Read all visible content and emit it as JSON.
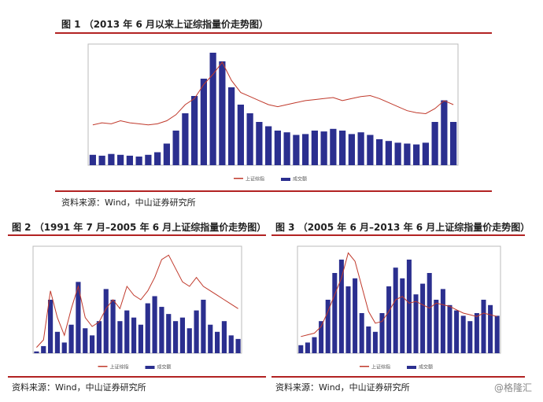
{
  "figures": [
    {
      "caption": "图 1 （2013 年 6 月以来上证综指量价走势图）",
      "source": "资料来源：Wind，中山证券研究所",
      "chart": {
        "type": "bar-line",
        "ylim": [
          0,
          6000
        ],
        "y2lim": [
          0,
          14000
        ],
        "series": [
          {
            "name": "上证综指",
            "color": "#c0392b",
            "axis": "y",
            "values": [
              2000,
              2100,
              2050,
              2200,
              2100,
              2050,
              2000,
              2050,
              2200,
              2500,
              3000,
              3300,
              4000,
              4500,
              5100,
              4200,
              3600,
              3400,
              3200,
              3000,
              2900,
              3000,
              3100,
              3200,
              3250,
              3300,
              3350,
              3200,
              3300,
              3400,
              3450,
              3300,
              3100,
              2900,
              2700,
              2600,
              2550,
              2800,
              3200,
              3000
            ]
          },
          {
            "name": "成交额",
            "color": "#2b2f8f",
            "axis": "y2",
            "values": [
              1200,
              1100,
              1300,
              1200,
              1100,
              1000,
              1200,
              1500,
              2500,
              4000,
              6000,
              8000,
              10000,
              13000,
              12000,
              9000,
              7000,
              6000,
              5000,
              4500,
              4000,
              3800,
              3500,
              3600,
              4000,
              3900,
              4200,
              4000,
              3600,
              3800,
              3500,
              3000,
              2800,
              2600,
              2500,
              2400,
              2600,
              5000,
              7500,
              5000
            ]
          }
        ]
      }
    },
    {
      "caption": "图 2 （1991 年 7 月–2005 年 6 月上证综指量价走势图）",
      "source": "资料来源：Wind，中山证券研究所",
      "chart": {
        "type": "bar-line",
        "ylim": [
          0,
          2400
        ],
        "y2lim": [
          0,
          3000
        ],
        "series": [
          {
            "name": "上证综指",
            "color": "#c0392b",
            "axis": "y",
            "values": [
              130,
              300,
              1400,
              800,
              400,
              1000,
              1500,
              800,
              600,
              700,
              1000,
              1200,
              1000,
              1500,
              1300,
              1200,
              1400,
              1700,
              2100,
              2200,
              1900,
              1600,
              1500,
              1700,
              1500,
              1400,
              1300,
              1200,
              1100,
              1000
            ]
          },
          {
            "name": "成交额",
            "color": "#2b2f8f",
            "axis": "y2",
            "values": [
              50,
              200,
              1500,
              600,
              300,
              800,
              2000,
              700,
              500,
              900,
              1800,
              1500,
              900,
              1200,
              1000,
              800,
              1400,
              1600,
              1300,
              1100,
              900,
              1000,
              700,
              1200,
              1500,
              800,
              600,
              900,
              500,
              400
            ]
          }
        ]
      }
    },
    {
      "caption": "图 3 （2005 年 6 月–2013 年 6 月上证综指量价走势图）",
      "source": "资料来源：Wind，中山证券研究所",
      "chart": {
        "type": "bar-line",
        "ylim": [
          0,
          6400
        ],
        "y2lim": [
          0,
          4000
        ],
        "series": [
          {
            "name": "上证综指",
            "color": "#c0392b",
            "axis": "y",
            "values": [
              1000,
              1100,
              1200,
              1600,
              2500,
              3500,
              4500,
              6000,
              5500,
              4000,
              2500,
              1800,
              1900,
              2500,
              3200,
              3400,
              3000,
              3100,
              2900,
              2700,
              3000,
              2900,
              2800,
              2600,
              2400,
              2300,
              2200,
              2400,
              2300,
              2200
            ]
          },
          {
            "name": "成交额",
            "color": "#2b2f8f",
            "axis": "y2",
            "values": [
              300,
              400,
              600,
              1200,
              2000,
              3000,
              3500,
              2500,
              2800,
              1500,
              1000,
              800,
              1500,
              2500,
              3200,
              2800,
              3500,
              2200,
              2600,
              3000,
              2000,
              2400,
              1800,
              1600,
              1400,
              1200,
              1500,
              2000,
              1800,
              1400
            ]
          }
        ]
      }
    }
  ],
  "watermark": "@格隆汇"
}
